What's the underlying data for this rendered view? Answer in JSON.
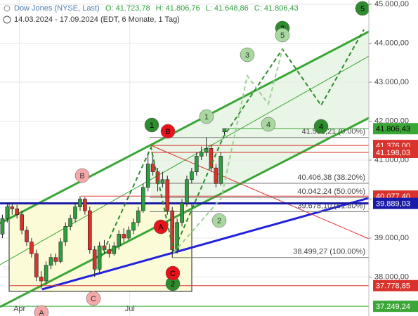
{
  "chart_data": {
    "type": "candlestick",
    "title": "Dow Jones (NYSE, Last)",
    "header_quote": [
      "O: 41.723,78",
      "H: 41.806,76",
      "L: 41.648,86",
      "C: 41.806,43"
    ],
    "subtitle": "14.03.2024 - 17.09.2024 (EDT, 6 Monate, 1 Tag)",
    "watermark": "stock3",
    "up_color": "#2e9e3e",
    "down_color": "#d9312b",
    "x": [
      0,
      4,
      8,
      12,
      16,
      20,
      24,
      28,
      32,
      36,
      40,
      44,
      48,
      52,
      56,
      60,
      64,
      68,
      72,
      76,
      80,
      84,
      88,
      92,
      96,
      100,
      104,
      108,
      112,
      116,
      120,
      124,
      128,
      132,
      136,
      140,
      144,
      148,
      152,
      156,
      160,
      164,
      168,
      172,
      176,
      180,
      184,
      187
    ],
    "open": [
      38950,
      39100,
      39500,
      39800,
      39750,
      39600,
      39200,
      38900,
      38600,
      38000,
      37900,
      38300,
      38500,
      38400,
      38900,
      39300,
      39500,
      39800,
      40000,
      39700,
      38700,
      38200,
      38800,
      38700,
      38600,
      38800,
      39100,
      39000,
      39200,
      39400,
      39700,
      40300,
      40900,
      40700,
      40400,
      40500,
      39700,
      38700,
      39400,
      39900,
      40500,
      40700,
      41100,
      41200,
      41300,
      40800,
      40400,
      41723.78
    ],
    "high": [
      39250,
      39600,
      39900,
      39900,
      39850,
      39700,
      39300,
      39000,
      38700,
      38150,
      38400,
      38600,
      38600,
      39000,
      39400,
      39600,
      39900,
      40077,
      40050,
      39800,
      38800,
      38900,
      38950,
      38850,
      38900,
      39200,
      39250,
      39300,
      39500,
      39800,
      40400,
      41200,
      41100,
      40800,
      40700,
      40600,
      39800,
      39500,
      40000,
      40600,
      40800,
      41200,
      41350,
      41580,
      41400,
      40900,
      41200,
      41806.76
    ],
    "low": [
      38800,
      39000,
      39400,
      39600,
      39500,
      39100,
      38800,
      38500,
      37900,
      37700,
      37800,
      38200,
      38300,
      38350,
      38800,
      39200,
      39400,
      39700,
      39600,
      38600,
      38000,
      38100,
      38600,
      38500,
      38550,
      38700,
      38900,
      38950,
      39100,
      39300,
      39650,
      40200,
      40600,
      40200,
      40300,
      39600,
      38500,
      38600,
      39300,
      39800,
      40400,
      40600,
      41000,
      41100,
      40700,
      40300,
      40350,
      41648.86
    ],
    "close": [
      39100,
      39500,
      39800,
      39750,
      39600,
      39200,
      38900,
      38600,
      38000,
      37900,
      38300,
      38500,
      38400,
      38900,
      39300,
      39500,
      39800,
      40000,
      39700,
      38700,
      38200,
      38800,
      38700,
      38600,
      38800,
      39100,
      39000,
      39200,
      39400,
      39700,
      40300,
      40900,
      40700,
      40400,
      40500,
      39700,
      38700,
      39400,
      39900,
      40500,
      40700,
      41100,
      41200,
      41300,
      40800,
      40400,
      41100,
      41806.43
    ],
    "xlim": [
      2,
      306
    ],
    "xticks": [
      {
        "value": 18,
        "label": "Apr"
      },
      {
        "value": 109,
        "label": "Jul"
      }
    ],
    "ylim": [
      37000,
      45108
    ],
    "yticks": [
      {
        "value": 38000,
        "label": "38.000,00"
      },
      {
        "value": 39000,
        "label": "39.000,00"
      },
      {
        "value": 40000,
        "label": "40.000,00"
      },
      {
        "value": 41000,
        "label": "41.000,00"
      },
      {
        "value": 42000,
        "label": "42.000,00"
      },
      {
        "value": 43000,
        "label": "43.000,00"
      },
      {
        "value": 44000,
        "label": "44.000,00"
      },
      {
        "value": 45000,
        "label": "45.000,00"
      }
    ],
    "grid": true,
    "fib_levels": [
      {
        "value": 41581.21,
        "label": "41.581,21 (0.00%)"
      },
      {
        "value": 40406.38,
        "label": "40.406,38 (38.20%)"
      },
      {
        "value": 40042.24,
        "label": "40.042,24 (50.00%)"
      },
      {
        "value": 39678.1,
        "label": "39.678,10 (61.80%)"
      },
      {
        "value": 38499.27,
        "label": "38.499,27 (100.00%)"
      }
    ],
    "price_lines": [
      {
        "value": 41376.0,
        "label": "41.376,00",
        "color": "#d9312b"
      },
      {
        "value": 41198.03,
        "label": "41.198,03",
        "color": "#d9312b"
      },
      {
        "value": 40077.4,
        "label": "40.077,40",
        "color": "#d9312b"
      },
      {
        "value": 39889.03,
        "label": "39.889,03",
        "color": "#1a1aa8"
      },
      {
        "value": 37778.85,
        "label": "37.778,85",
        "color": "#d9312b"
      },
      {
        "value": 37249.24,
        "label": "37.249,24",
        "color": "#3aa635"
      },
      {
        "value": 41806.43,
        "label": "41.806,43",
        "color": "#3aa635"
      }
    ],
    "wave_labels": [
      "1",
      "2",
      "3",
      "4",
      "5",
      "1",
      "2",
      "3",
      "4",
      "5",
      "A",
      "B",
      "C",
      "A",
      "B",
      "C"
    ]
  }
}
